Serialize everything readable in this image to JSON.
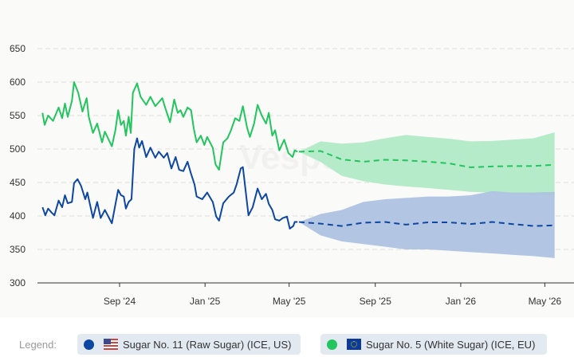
{
  "chart_data": {
    "type": "line",
    "title": "",
    "xlabel": "",
    "ylabel": "",
    "ylim": [
      300,
      650
    ],
    "yticks": [
      300,
      350,
      400,
      450,
      500,
      550,
      600,
      650
    ],
    "xticks": [
      {
        "date": "2024-09-01",
        "label": "Sep '24"
      },
      {
        "date": "2025-01-01",
        "label": "Jan '25"
      },
      {
        "date": "2025-05-01",
        "label": "May '25"
      },
      {
        "date": "2025-09-01",
        "label": "Sep '25"
      },
      {
        "date": "2026-01-01",
        "label": "Jan '26"
      },
      {
        "date": "2026-05-01",
        "label": "May '26"
      }
    ],
    "grid": true,
    "legend_position": "bottom",
    "watermark": "Vesper",
    "series": [
      {
        "name": "Sugar No. 11 (Raw Sugar) (ICE, US)",
        "color": "#0d47a1",
        "band_color": "#aec2e0",
        "history": [
          [
            "2024-05-14",
            413
          ],
          [
            "2024-05-18",
            401
          ],
          [
            "2024-05-22",
            411
          ],
          [
            "2024-05-27",
            405
          ],
          [
            "2024-05-31",
            401
          ],
          [
            "2024-06-06",
            423
          ],
          [
            "2024-06-11",
            413
          ],
          [
            "2024-06-15",
            431
          ],
          [
            "2024-06-19",
            419
          ],
          [
            "2024-06-25",
            421
          ],
          [
            "2024-06-28",
            449
          ],
          [
            "2024-07-03",
            455
          ],
          [
            "2024-07-08",
            445
          ],
          [
            "2024-07-14",
            425
          ],
          [
            "2024-07-17",
            435
          ],
          [
            "2024-07-25",
            397
          ],
          [
            "2024-07-31",
            421
          ],
          [
            "2024-08-05",
            397
          ],
          [
            "2024-08-11",
            409
          ],
          [
            "2024-08-21",
            389
          ],
          [
            "2024-08-26",
            417
          ],
          [
            "2024-08-30",
            439
          ],
          [
            "2024-09-03",
            431
          ],
          [
            "2024-09-07",
            429
          ],
          [
            "2024-09-10",
            411
          ],
          [
            "2024-09-14",
            421
          ],
          [
            "2024-09-18",
            425
          ],
          [
            "2024-09-22",
            500
          ],
          [
            "2024-09-26",
            516
          ],
          [
            "2024-09-29",
            502
          ],
          [
            "2024-10-03",
            512
          ],
          [
            "2024-10-09",
            488
          ],
          [
            "2024-10-15",
            502
          ],
          [
            "2024-10-22",
            487
          ],
          [
            "2024-10-27",
            496
          ],
          [
            "2024-11-03",
            487
          ],
          [
            "2024-11-08",
            494
          ],
          [
            "2024-11-14",
            471
          ],
          [
            "2024-11-20",
            488
          ],
          [
            "2024-11-25",
            469
          ],
          [
            "2024-12-01",
            467
          ],
          [
            "2024-12-07",
            481
          ],
          [
            "2024-12-12",
            463
          ],
          [
            "2024-12-17",
            447
          ],
          [
            "2024-12-20",
            429
          ],
          [
            "2024-12-28",
            425
          ],
          [
            "2025-01-04",
            435
          ],
          [
            "2025-01-12",
            421
          ],
          [
            "2025-01-17",
            399
          ],
          [
            "2025-01-21",
            393
          ],
          [
            "2025-01-27",
            419
          ],
          [
            "2025-02-04",
            429
          ],
          [
            "2025-02-11",
            435
          ],
          [
            "2025-02-15",
            447
          ],
          [
            "2025-02-21",
            471
          ],
          [
            "2025-02-24",
            473
          ],
          [
            "2025-02-26",
            455
          ],
          [
            "2025-03-04",
            401
          ],
          [
            "2025-03-10",
            413
          ],
          [
            "2025-03-17",
            441
          ],
          [
            "2025-03-23",
            425
          ],
          [
            "2025-03-29",
            433
          ],
          [
            "2025-04-02",
            418
          ],
          [
            "2025-04-07",
            409
          ],
          [
            "2025-04-11",
            395
          ],
          [
            "2025-04-17",
            393
          ],
          [
            "2025-04-22",
            397
          ],
          [
            "2025-04-28",
            399
          ],
          [
            "2025-05-02",
            381
          ],
          [
            "2025-05-07",
            385
          ],
          [
            "2025-05-09",
            391
          ],
          [
            "2025-05-13",
            391
          ]
        ],
        "forecast": {
          "dates": [
            "2025-05-15",
            "2025-06-15",
            "2025-07-15",
            "2025-08-15",
            "2025-09-15",
            "2025-10-15",
            "2025-11-15",
            "2025-12-15",
            "2026-01-15",
            "2026-02-15",
            "2026-03-15",
            "2026-04-15",
            "2026-05-15"
          ],
          "mid": [
            391,
            388.5,
            385,
            390,
            391,
            387,
            390.5,
            390.5,
            388,
            391,
            388,
            385,
            386
          ],
          "upper": [
            391,
            403,
            409,
            421,
            425,
            427,
            429,
            429,
            431,
            437,
            435,
            435,
            436
          ],
          "lower": [
            391,
            371,
            362,
            358,
            354,
            350,
            350,
            348,
            346,
            344,
            342,
            340,
            337
          ]
        }
      },
      {
        "name": "Sugar No. 5 (White Sugar) (ICE, EU)",
        "color": "#22c55e",
        "band_color": "#b6ebc9",
        "history": [
          [
            "2024-05-14",
            554
          ],
          [
            "2024-05-17",
            536
          ],
          [
            "2024-05-22",
            550
          ],
          [
            "2024-05-29",
            542
          ],
          [
            "2024-06-06",
            562
          ],
          [
            "2024-06-11",
            546
          ],
          [
            "2024-06-15",
            568
          ],
          [
            "2024-06-19",
            548
          ],
          [
            "2024-06-25",
            572
          ],
          [
            "2024-06-28",
            600
          ],
          [
            "2024-07-04",
            584
          ],
          [
            "2024-07-10",
            556
          ],
          [
            "2024-07-16",
            576
          ],
          [
            "2024-07-19",
            548
          ],
          [
            "2024-07-25",
            524
          ],
          [
            "2024-07-31",
            538
          ],
          [
            "2024-08-07",
            510
          ],
          [
            "2024-08-11",
            526
          ],
          [
            "2024-08-21",
            504
          ],
          [
            "2024-08-26",
            528
          ],
          [
            "2024-08-30",
            558
          ],
          [
            "2024-09-03",
            536
          ],
          [
            "2024-09-07",
            542
          ],
          [
            "2024-09-10",
            520
          ],
          [
            "2024-09-14",
            548
          ],
          [
            "2024-09-17",
            524
          ],
          [
            "2024-09-20",
            584
          ],
          [
            "2024-09-26",
            598
          ],
          [
            "2024-10-01",
            578
          ],
          [
            "2024-10-09",
            566
          ],
          [
            "2024-10-15",
            578
          ],
          [
            "2024-10-22",
            564
          ],
          [
            "2024-11-01",
            576
          ],
          [
            "2024-11-05",
            562
          ],
          [
            "2024-11-12",
            540
          ],
          [
            "2024-11-18",
            574
          ],
          [
            "2024-11-23",
            554
          ],
          [
            "2024-11-27",
            558
          ],
          [
            "2024-12-01",
            548
          ],
          [
            "2024-12-07",
            562
          ],
          [
            "2024-12-12",
            558
          ],
          [
            "2024-12-16",
            530
          ],
          [
            "2024-12-20",
            510
          ],
          [
            "2024-12-26",
            520
          ],
          [
            "2024-12-31",
            506
          ],
          [
            "2025-01-04",
            518
          ],
          [
            "2025-01-12",
            502
          ],
          [
            "2025-01-16",
            477
          ],
          [
            "2025-01-21",
            469
          ],
          [
            "2025-01-27",
            510
          ],
          [
            "2025-02-02",
            516
          ],
          [
            "2025-02-07",
            528
          ],
          [
            "2025-02-13",
            546
          ],
          [
            "2025-02-19",
            542
          ],
          [
            "2025-02-24",
            564
          ],
          [
            "2025-03-02",
            532
          ],
          [
            "2025-03-06",
            518
          ],
          [
            "2025-03-12",
            538
          ],
          [
            "2025-03-17",
            566
          ],
          [
            "2025-03-23",
            550
          ],
          [
            "2025-03-29",
            538
          ],
          [
            "2025-04-02",
            554
          ],
          [
            "2025-04-07",
            520
          ],
          [
            "2025-04-11",
            528
          ],
          [
            "2025-04-17",
            498
          ],
          [
            "2025-04-24",
            514
          ],
          [
            "2025-04-30",
            494
          ],
          [
            "2025-05-06",
            488
          ],
          [
            "2025-05-09",
            498
          ],
          [
            "2025-05-13",
            496
          ]
        ],
        "forecast": {
          "dates": [
            "2025-05-15",
            "2025-06-15",
            "2025-07-15",
            "2025-08-15",
            "2025-09-15",
            "2025-10-15",
            "2025-11-15",
            "2025-12-15",
            "2026-01-15",
            "2026-02-15",
            "2026-03-15",
            "2026-04-15",
            "2026-05-15"
          ],
          "mid": [
            496,
            497,
            484.5,
            481,
            484,
            483,
            481,
            478.6,
            472.6,
            474,
            474.6,
            474.6,
            476.6
          ],
          "upper": [
            496,
            511.5,
            508,
            510,
            516,
            521,
            518,
            515.5,
            511.5,
            512,
            514,
            516,
            525
          ],
          "lower": [
            496,
            480.6,
            460,
            452,
            447,
            444,
            441.7,
            439,
            436,
            435,
            433,
            431,
            431
          ]
        }
      }
    ]
  },
  "legend": {
    "label": "Legend:",
    "items": [
      {
        "label": "Sugar No. 11 (Raw Sugar) (ICE, US)",
        "color": "#0d47a1",
        "flag": "us-flag"
      },
      {
        "label": "Sugar No. 5 (White Sugar) (ICE, EU)",
        "color": "#22c55e",
        "flag": "eu-flag"
      }
    ]
  }
}
